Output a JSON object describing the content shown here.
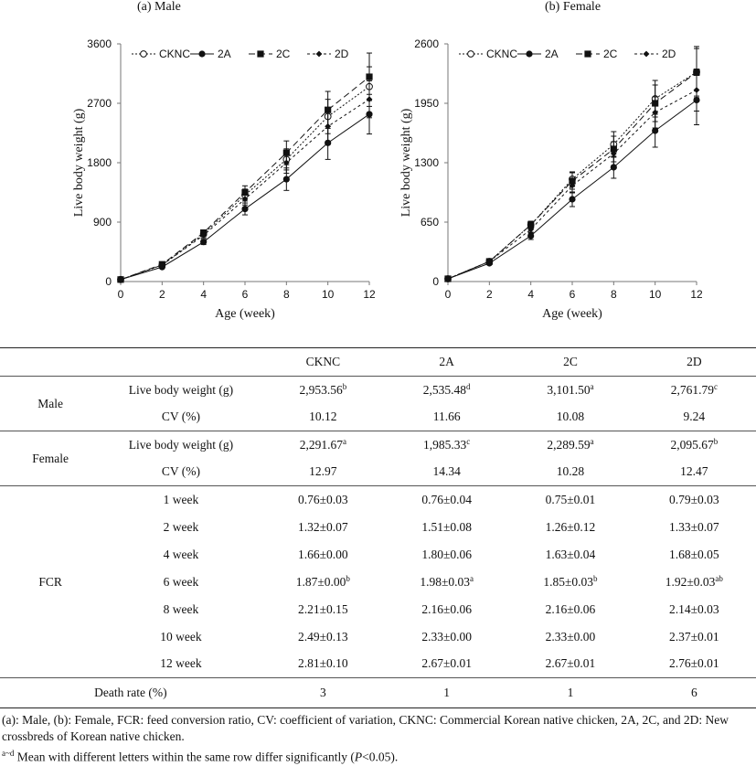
{
  "panels": [
    {
      "title": "(a) Male",
      "chart_data": {
        "type": "line",
        "xlabel": "Age (week)",
        "ylabel": "Live body weight (g)",
        "x": [
          0,
          2,
          4,
          6,
          8,
          10,
          12
        ],
        "xticks": [
          "0",
          "2",
          "4",
          "6",
          "8",
          "10",
          "12"
        ],
        "ylim": [
          0,
          3600
        ],
        "yticks": [
          "0",
          "900",
          "1800",
          "2700",
          "3600"
        ],
        "legend": "top",
        "series": [
          {
            "name": "CKNC",
            "values": [
              30,
              250,
              720,
              1310,
              1850,
              2500,
              2953
            ],
            "err": [
              0,
              15,
              40,
              90,
              160,
              260,
              300
            ],
            "marker": "circle-open",
            "dash": "2,2"
          },
          {
            "name": "2A",
            "values": [
              30,
              220,
              600,
              1100,
              1550,
              2100,
              2535
            ],
            "err": [
              0,
              15,
              40,
              90,
              170,
              250,
              300
            ],
            "marker": "circle",
            "dash": ""
          },
          {
            "name": "2C",
            "values": [
              30,
              260,
              740,
              1350,
              1950,
              2600,
              3101
            ],
            "err": [
              0,
              15,
              40,
              100,
              180,
              280,
              360
            ],
            "marker": "square",
            "dash": "7,4"
          },
          {
            "name": "2D",
            "values": [
              30,
              250,
              700,
              1250,
              1800,
              2350,
              2761
            ],
            "err": [
              0,
              15,
              40,
              90,
              160,
              230,
              280
            ],
            "marker": "diamond",
            "dash": "3,3"
          }
        ]
      }
    },
    {
      "title": "(b) Female",
      "chart_data": {
        "type": "line",
        "xlabel": "Age (week)",
        "ylabel": "Live body weight (g)",
        "x": [
          0,
          2,
          4,
          6,
          8,
          10,
          12
        ],
        "xticks": [
          "0",
          "2",
          "4",
          "6",
          "8",
          "10",
          "12"
        ],
        "ylim": [
          0,
          2600
        ],
        "yticks": [
          "0",
          "650",
          "1300",
          "1950",
          "2600"
        ],
        "legend": "top",
        "series": [
          {
            "name": "CKNC",
            "values": [
              30,
              220,
              620,
              1120,
              1500,
              2000,
              2291
            ],
            "err": [
              0,
              15,
              40,
              80,
              140,
              200,
              280
            ],
            "marker": "circle-open",
            "dash": "2,2"
          },
          {
            "name": "2A",
            "values": [
              30,
              200,
              500,
              900,
              1250,
              1650,
              1985
            ],
            "err": [
              0,
              15,
              40,
              80,
              120,
              180,
              270
            ],
            "marker": "circle",
            "dash": ""
          },
          {
            "name": "2C",
            "values": [
              30,
              220,
              620,
              1100,
              1450,
              1950,
              2289
            ],
            "err": [
              0,
              15,
              40,
              90,
              140,
              200,
              260
            ],
            "marker": "square",
            "dash": "7,4"
          },
          {
            "name": "2D",
            "values": [
              30,
              220,
              570,
              1050,
              1400,
              1850,
              2095
            ],
            "err": [
              0,
              15,
              40,
              80,
              130,
              170,
              230
            ],
            "marker": "diamond",
            "dash": "3,3"
          }
        ]
      }
    }
  ],
  "table": {
    "headers": [
      "CKNC",
      "2A",
      "2C",
      "2D"
    ],
    "male": {
      "label": "Male",
      "rows": [
        {
          "label": "Live body weight (g)",
          "cells": [
            {
              "v": "2,953.56",
              "s": "b"
            },
            {
              "v": "2,535.48",
              "s": "d"
            },
            {
              "v": "3,101.50",
              "s": "a"
            },
            {
              "v": "2,761.79",
              "s": "c"
            }
          ]
        },
        {
          "label": "CV (%)",
          "cells": [
            {
              "v": "10.12",
              "s": ""
            },
            {
              "v": "11.66",
              "s": ""
            },
            {
              "v": "10.08",
              "s": ""
            },
            {
              "v": "9.24",
              "s": ""
            }
          ]
        }
      ]
    },
    "female": {
      "label": "Female",
      "rows": [
        {
          "label": "Live body weight (g)",
          "cells": [
            {
              "v": "2,291.67",
              "s": "a"
            },
            {
              "v": "1,985.33",
              "s": "c"
            },
            {
              "v": "2,289.59",
              "s": "a"
            },
            {
              "v": "2,095.67",
              "s": "b"
            }
          ]
        },
        {
          "label": "CV (%)",
          "cells": [
            {
              "v": "12.97",
              "s": ""
            },
            {
              "v": "14.34",
              "s": ""
            },
            {
              "v": "10.28",
              "s": ""
            },
            {
              "v": "12.47",
              "s": ""
            }
          ]
        }
      ]
    },
    "fcr": {
      "label": "FCR",
      "rows": [
        {
          "label": "1 week",
          "cells": [
            {
              "v": "0.76±0.03",
              "s": ""
            },
            {
              "v": "0.76±0.04",
              "s": ""
            },
            {
              "v": "0.75±0.01",
              "s": ""
            },
            {
              "v": "0.79±0.03",
              "s": ""
            }
          ]
        },
        {
          "label": "2 week",
          "cells": [
            {
              "v": "1.32±0.07",
              "s": ""
            },
            {
              "v": "1.51±0.08",
              "s": ""
            },
            {
              "v": "1.26±0.12",
              "s": ""
            },
            {
              "v": "1.33±0.07",
              "s": ""
            }
          ]
        },
        {
          "label": "4 week",
          "cells": [
            {
              "v": "1.66±0.00",
              "s": ""
            },
            {
              "v": "1.80±0.06",
              "s": ""
            },
            {
              "v": "1.63±0.04",
              "s": ""
            },
            {
              "v": "1.68±0.05",
              "s": ""
            }
          ]
        },
        {
          "label": "6 week",
          "cells": [
            {
              "v": "1.87±0.00",
              "s": "b"
            },
            {
              "v": "1.98±0.03",
              "s": "a"
            },
            {
              "v": "1.85±0.03",
              "s": "b"
            },
            {
              "v": "1.92±0.03",
              "s": "ab"
            }
          ]
        },
        {
          "label": "8 week",
          "cells": [
            {
              "v": "2.21±0.15",
              "s": ""
            },
            {
              "v": "2.16±0.06",
              "s": ""
            },
            {
              "v": "2.16±0.06",
              "s": ""
            },
            {
              "v": "2.14±0.03",
              "s": ""
            }
          ]
        },
        {
          "label": "10 week",
          "cells": [
            {
              "v": "2.49±0.13",
              "s": ""
            },
            {
              "v": "2.33±0.00",
              "s": ""
            },
            {
              "v": "2.33±0.00",
              "s": ""
            },
            {
              "v": "2.37±0.01",
              "s": ""
            }
          ]
        },
        {
          "label": "12 week",
          "cells": [
            {
              "v": "2.81±0.10",
              "s": ""
            },
            {
              "v": "2.67±0.01",
              "s": ""
            },
            {
              "v": "2.67±0.01",
              "s": ""
            },
            {
              "v": "2.76±0.01",
              "s": ""
            }
          ]
        }
      ]
    },
    "death": {
      "label": "Death rate (%)",
      "cells": [
        "3",
        "1",
        "1",
        "6"
      ]
    }
  },
  "footnotes": {
    "line1": "(a): Male, (b): Female, FCR: feed conversion ratio, CV: coefficient of variation, CKNC: Commercial Korean native chicken, 2A, 2C, and 2D: New crossbreds of Korean native chicken.",
    "letters_sup": "a~d",
    "letters_text": " Mean with different letters within the same row differ significantly (",
    "p_italic": "P",
    "p_rest": "<0.05)."
  }
}
